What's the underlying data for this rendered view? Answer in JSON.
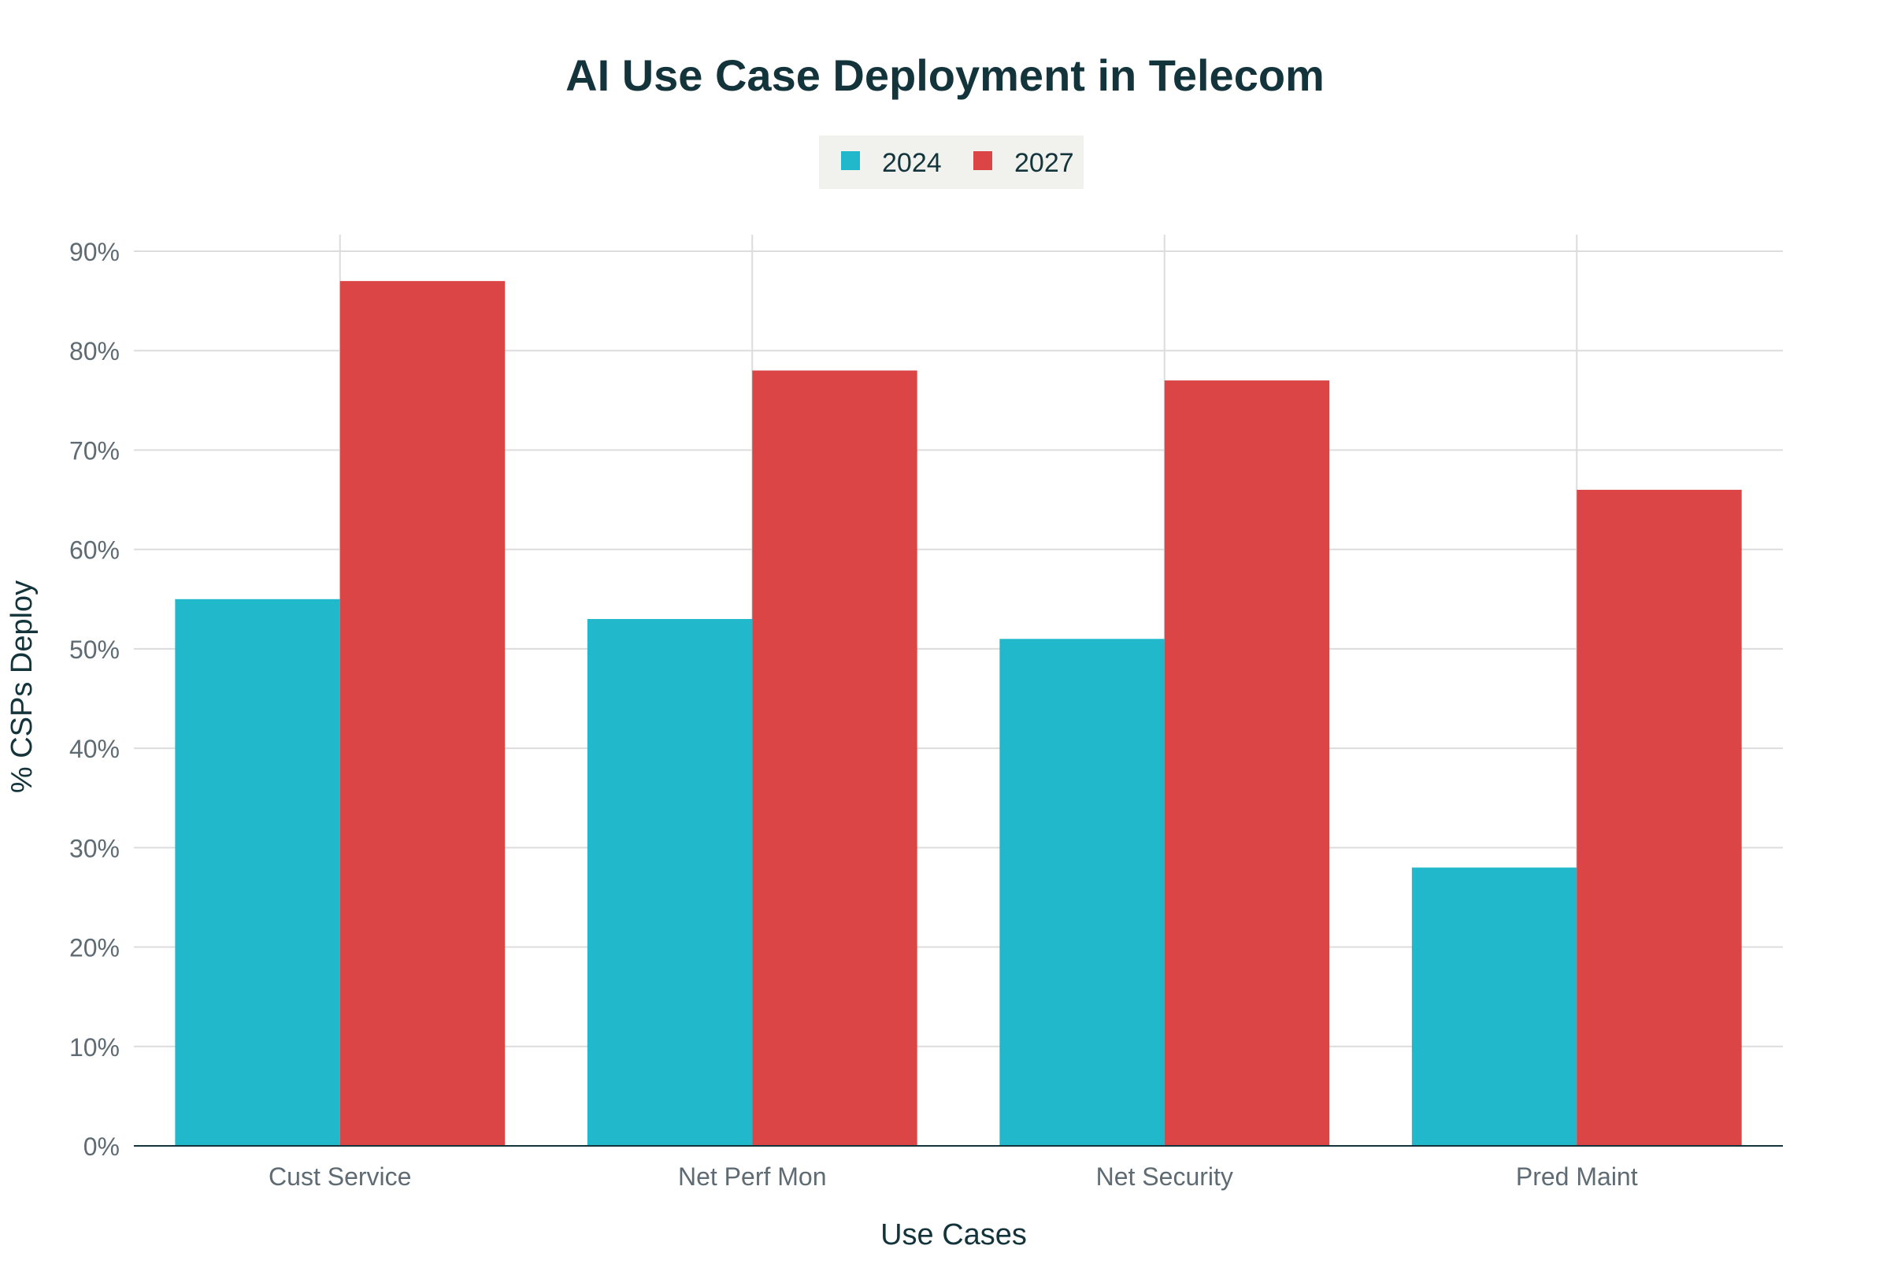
{
  "chart_data": {
    "type": "bar",
    "title": "AI Use Case Deployment in Telecom",
    "xlabel": "Use Cases",
    "ylabel": "% CSPs Deploy",
    "categories": [
      "Cust Service",
      "Net Perf Mon",
      "Net Security",
      "Pred Maint"
    ],
    "series": [
      {
        "name": "2024",
        "color": "#21b8cc",
        "values": [
          55,
          53,
          51,
          28
        ]
      },
      {
        "name": "2027",
        "color": "#db4545",
        "values": [
          87,
          78,
          77,
          66
        ]
      }
    ],
    "ylim": [
      0,
      90
    ],
    "yticks": [
      0,
      10,
      20,
      30,
      40,
      50,
      60,
      70,
      80,
      90
    ],
    "ytick_labels": [
      "0%",
      "10%",
      "20%",
      "30%",
      "40%",
      "50%",
      "60%",
      "70%",
      "80%",
      "90%"
    ],
    "grid": true,
    "legend_position": "top-center",
    "colors": {
      "title": "#13343b",
      "tick_label": "#5f6b73",
      "axis_label": "#13343b",
      "grid": "#dcdcdc",
      "axis_line": "#13343b",
      "legend_bg": "#f1f2ee"
    }
  }
}
